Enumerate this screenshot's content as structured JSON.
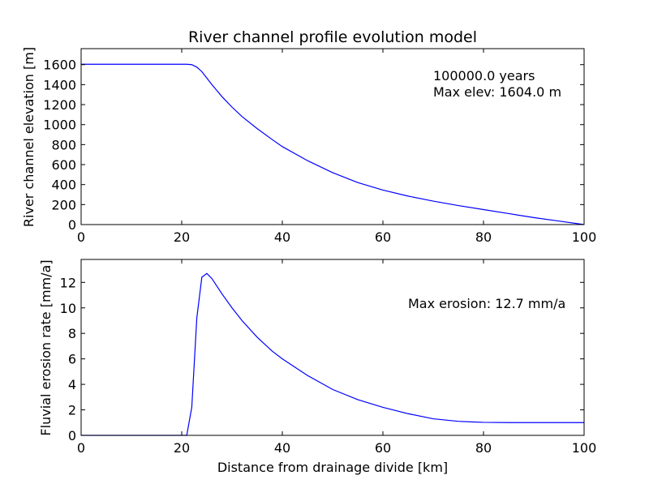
{
  "chart_data": [
    {
      "type": "line",
      "title": "River channel profile evolution model",
      "xlabel": "",
      "ylabel": "River channel elevation [m]",
      "xlim": [
        0,
        100
      ],
      "ylim": [
        0,
        1760
      ],
      "xticks": [
        0,
        20,
        40,
        60,
        80,
        100
      ],
      "yticks": [
        0,
        200,
        400,
        600,
        800,
        1000,
        1200,
        1400,
        1600
      ],
      "grid": false,
      "annotations": [
        "100000.0 years",
        "Max elev: 1604.0 m"
      ],
      "series": [
        {
          "color": "#0000ff",
          "x": [
            0,
            5,
            10,
            15,
            20,
            21,
            22,
            23,
            24,
            25,
            26,
            27,
            28,
            30,
            32,
            35,
            38,
            40,
            45,
            50,
            55,
            60,
            65,
            70,
            75,
            80,
            85,
            90,
            95,
            100
          ],
          "y": [
            1604,
            1604,
            1604,
            1604,
            1604,
            1604,
            1600,
            1575,
            1530,
            1465,
            1400,
            1340,
            1280,
            1175,
            1080,
            960,
            850,
            780,
            640,
            520,
            420,
            345,
            285,
            235,
            190,
            150,
            110,
            70,
            35,
            0
          ]
        }
      ]
    },
    {
      "type": "line",
      "title": "",
      "xlabel": "Distance from drainage divide [km]",
      "ylabel": "Fluvial erosion rate [mm/a]",
      "xlim": [
        0,
        100
      ],
      "ylim": [
        0,
        13.8
      ],
      "xticks": [
        0,
        20,
        40,
        60,
        80,
        100
      ],
      "yticks": [
        0,
        2,
        4,
        6,
        8,
        10,
        12
      ],
      "grid": false,
      "annotations": [
        "Max erosion: 12.7 mm/a"
      ],
      "series": [
        {
          "color": "#0000ff",
          "x": [
            0,
            5,
            10,
            15,
            20,
            21,
            22,
            23,
            24,
            25,
            26,
            27,
            28,
            30,
            32,
            35,
            38,
            40,
            45,
            50,
            55,
            60,
            65,
            70,
            75,
            78,
            80,
            85,
            90,
            95,
            100
          ],
          "y": [
            0,
            0,
            0,
            0,
            0,
            0,
            2.2,
            9.2,
            12.4,
            12.7,
            12.3,
            11.7,
            11.1,
            10.0,
            9.0,
            7.7,
            6.6,
            6.0,
            4.7,
            3.6,
            2.8,
            2.2,
            1.7,
            1.3,
            1.1,
            1.05,
            1.02,
            1.0,
            1.0,
            1.0,
            1.0
          ]
        }
      ]
    }
  ]
}
